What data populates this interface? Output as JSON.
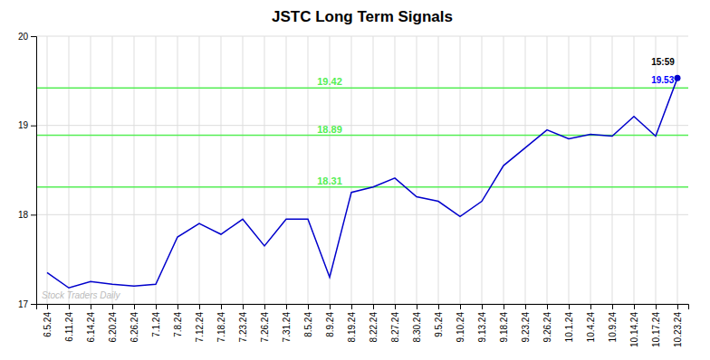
{
  "chart_data": {
    "type": "line",
    "title": "JSTC Long Term Signals",
    "categories": [
      "6.5.24",
      "6.11.24",
      "6.14.24",
      "6.20.24",
      "6.26.24",
      "7.1.24",
      "7.8.24",
      "7.12.24",
      "7.18.24",
      "7.23.24",
      "7.26.24",
      "7.31.24",
      "8.5.24",
      "8.9.24",
      "8.19.24",
      "8.22.24",
      "8.27.24",
      "8.30.24",
      "9.5.24",
      "9.10.24",
      "9.13.24",
      "9.18.24",
      "9.23.24",
      "9.26.24",
      "10.1.24",
      "10.4.24",
      "10.9.24",
      "10.14.24",
      "10.17.24",
      "10.23.24"
    ],
    "values": [
      17.35,
      17.18,
      17.25,
      17.22,
      17.2,
      17.22,
      17.75,
      17.9,
      17.78,
      17.95,
      17.65,
      17.95,
      17.95,
      17.3,
      18.25,
      18.31,
      18.41,
      18.2,
      18.15,
      17.98,
      18.15,
      18.55,
      18.75,
      18.95,
      18.85,
      18.9,
      18.88,
      19.1,
      18.88,
      19.53
    ],
    "color": "#0000cc",
    "marker": "circle",
    "hlines": [
      {
        "value": 19.42,
        "label": "19.42",
        "color": "#55ee55"
      },
      {
        "value": 18.89,
        "label": "18.89",
        "color": "#55ee55"
      },
      {
        "value": 18.31,
        "label": "18.31",
        "color": "#55ee55"
      }
    ],
    "annotations": [
      {
        "text": "15:59",
        "color": "#000000"
      },
      {
        "text": "19.53",
        "color": "#0000ff"
      }
    ],
    "watermark": {
      "text": "Stock Traders Daily",
      "color": "#bbbbbb"
    },
    "ylim": [
      17.0,
      20.0
    ],
    "yticks": [
      17,
      18,
      19,
      20
    ],
    "grid": true
  }
}
